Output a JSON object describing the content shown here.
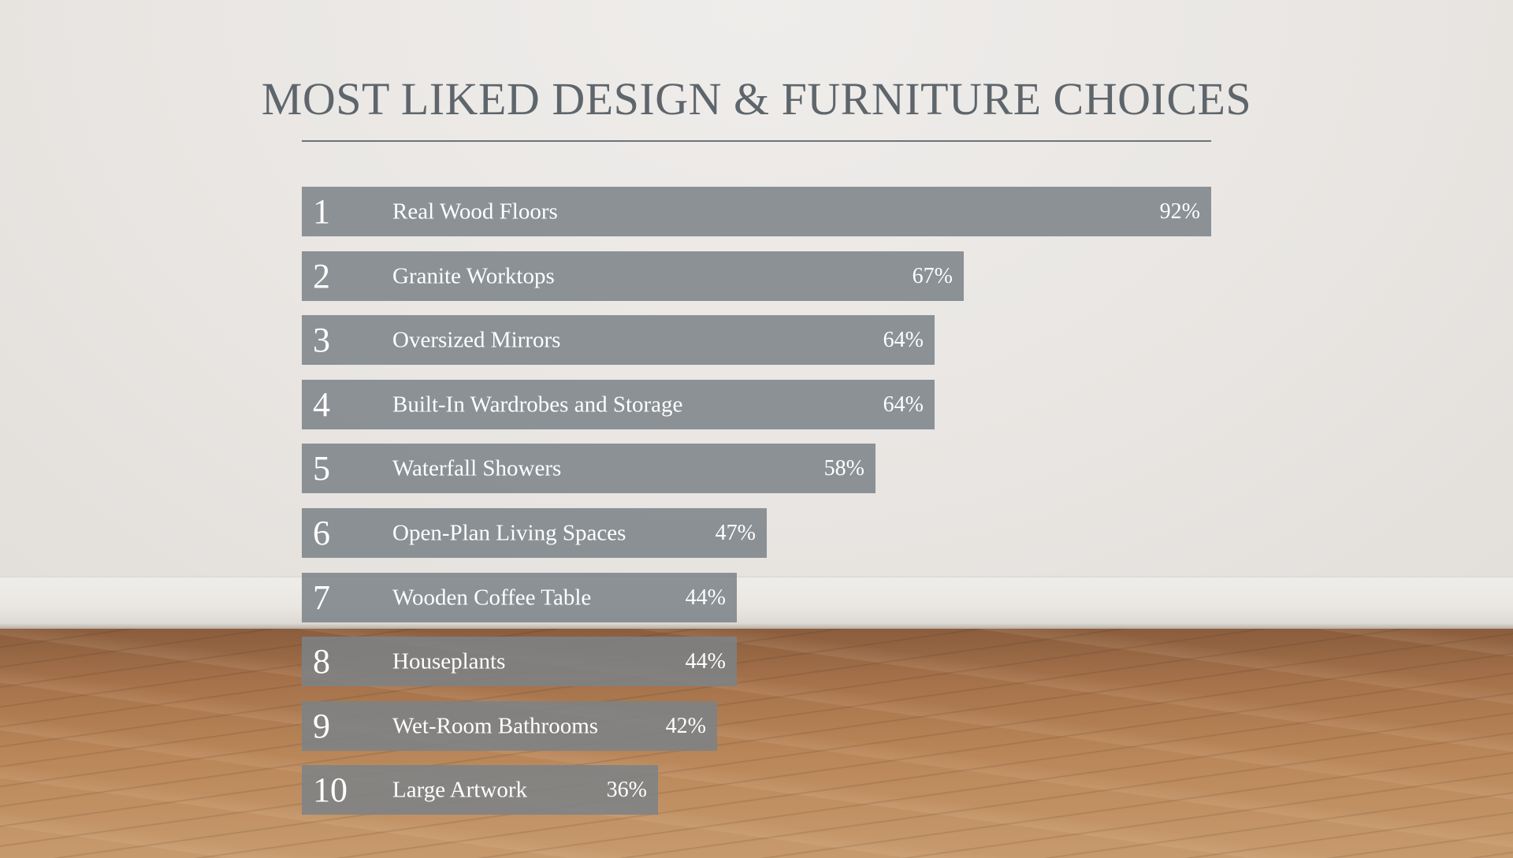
{
  "colors": {
    "bar": "#7b8287",
    "title": "#5e666c",
    "text": "#ffffff"
  },
  "chart_data": {
    "type": "bar",
    "orientation": "horizontal",
    "title": "MOST LIKED DESIGN & FURNITURE CHOICES",
    "xlim": [
      0,
      92
    ],
    "grid": false,
    "bars": [
      {
        "rank": "1",
        "category": "Real Wood Floors",
        "value": 92,
        "value_label": "92%"
      },
      {
        "rank": "2",
        "category": "Granite Worktops",
        "value": 67,
        "value_label": "67%"
      },
      {
        "rank": "3",
        "category": "Oversized Mirrors",
        "value": 64,
        "value_label": "64%"
      },
      {
        "rank": "4",
        "category": "Built-In Wardrobes and Storage",
        "value": 64,
        "value_label": "64%"
      },
      {
        "rank": "5",
        "category": "Waterfall Showers",
        "value": 58,
        "value_label": "58%"
      },
      {
        "rank": "6",
        "category": "Open-Plan Living Spaces",
        "value": 47,
        "value_label": "47%"
      },
      {
        "rank": "7",
        "category": "Wooden Coffee Table",
        "value": 44,
        "value_label": "44%"
      },
      {
        "rank": "8",
        "category": "Houseplants",
        "value": 44,
        "value_label": "44%"
      },
      {
        "rank": "9",
        "category": "Wet-Room Bathrooms",
        "value": 42,
        "value_label": "42%"
      },
      {
        "rank": "10",
        "category": "Large Artwork",
        "value": 36,
        "value_label": "36%"
      }
    ]
  }
}
